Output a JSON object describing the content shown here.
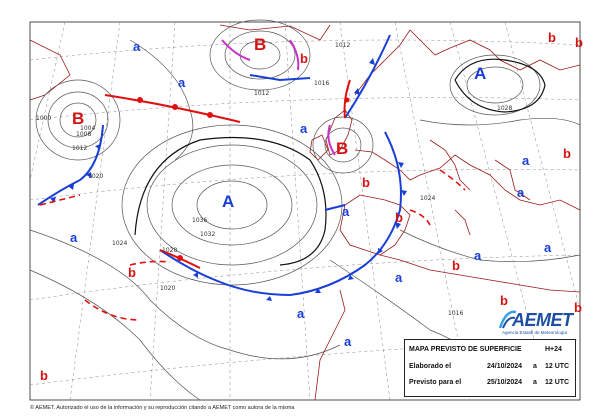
{
  "map": {
    "title": "MAPA PREVISTO DE SUPERFICIE",
    "step": "H+24",
    "elaborated_label": "Elaborado el",
    "elaborated_date": "24/10/2024",
    "elaborated_sep": "a",
    "elaborated_time": "12 UTC",
    "valid_label": "Previsto para el",
    "valid_date": "25/10/2024",
    "valid_sep": "a",
    "valid_time": "12 UTC"
  },
  "logo": {
    "name": "AEMET",
    "subtitle": "Agencia Estatal de Meteorología"
  },
  "footer": {
    "copyright": "© AEMET. Autorizado el uso de la información y su reproducción citando a AEMET como autora de la misma"
  },
  "colors": {
    "high": "#1a3fd6",
    "low": "#d41414",
    "cold_front": "#1a3fd6",
    "warm_front": "#e01010",
    "occluded_front": "#c832c8",
    "isobar": "#555555",
    "land": "#9a1a1a",
    "graticule": "#888888"
  },
  "pressure_centers": [
    {
      "type": "A",
      "label": "A"
    },
    {
      "type": "A",
      "label": "A"
    },
    {
      "type": "B",
      "label": "B"
    },
    {
      "type": "B",
      "label": "B"
    },
    {
      "type": "B",
      "label": "B"
    },
    {
      "type": "a",
      "label": "a"
    },
    {
      "type": "a",
      "label": "a"
    },
    {
      "type": "a",
      "label": "a"
    },
    {
      "type": "a",
      "label": "a"
    },
    {
      "type": "a",
      "label": "a"
    },
    {
      "type": "a",
      "label": "a"
    },
    {
      "type": "a",
      "label": "a"
    },
    {
      "type": "a",
      "label": "a"
    },
    {
      "type": "a",
      "label": "a"
    },
    {
      "type": "a",
      "label": "a"
    },
    {
      "type": "a",
      "label": "a"
    },
    {
      "type": "a",
      "label": "a"
    },
    {
      "type": "b",
      "label": "b"
    },
    {
      "type": "b",
      "label": "b"
    },
    {
      "type": "b",
      "label": "b"
    },
    {
      "type": "b",
      "label": "b"
    },
    {
      "type": "b",
      "label": "b"
    },
    {
      "type": "b",
      "label": "b"
    },
    {
      "type": "b",
      "label": "b"
    },
    {
      "type": "b",
      "label": "b"
    },
    {
      "type": "b",
      "label": "b"
    },
    {
      "type": "b",
      "label": "b"
    },
    {
      "type": "b",
      "label": "b"
    }
  ],
  "isobar_labels": [
    "1012",
    "1024",
    "1028",
    "1032",
    "1036",
    "1020",
    "1016",
    "1012",
    "1008",
    "1004",
    "1000",
    "1016",
    "1020",
    "1024",
    "1028",
    "1012"
  ]
}
